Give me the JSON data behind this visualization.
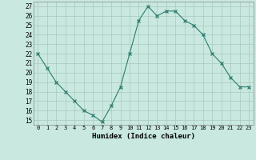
{
  "x": [
    0,
    1,
    2,
    3,
    4,
    5,
    6,
    7,
    8,
    9,
    10,
    11,
    12,
    13,
    14,
    15,
    16,
    17,
    18,
    19,
    20,
    21,
    22,
    23
  ],
  "y": [
    22,
    20.5,
    19,
    18,
    17,
    16,
    15.5,
    14.8,
    16.5,
    18.5,
    22,
    25.5,
    27,
    26,
    26.5,
    26.5,
    25.5,
    25,
    24,
    22,
    21,
    19.5,
    18.5,
    18.5
  ],
  "line_color": "#2e7d6e",
  "marker": "x",
  "marker_size": 3,
  "bg_color": "#c8e8e0",
  "grid_color": "#a8c8c0",
  "xlabel": "Humidex (Indice chaleur)",
  "xlim": [
    -0.5,
    23.5
  ],
  "ylim": [
    14.5,
    27.5
  ],
  "yticks": [
    15,
    16,
    17,
    18,
    19,
    20,
    21,
    22,
    23,
    24,
    25,
    26,
    27
  ],
  "xticks": [
    0,
    1,
    2,
    3,
    4,
    5,
    6,
    7,
    8,
    9,
    10,
    11,
    12,
    13,
    14,
    15,
    16,
    17,
    18,
    19,
    20,
    21,
    22,
    23
  ]
}
